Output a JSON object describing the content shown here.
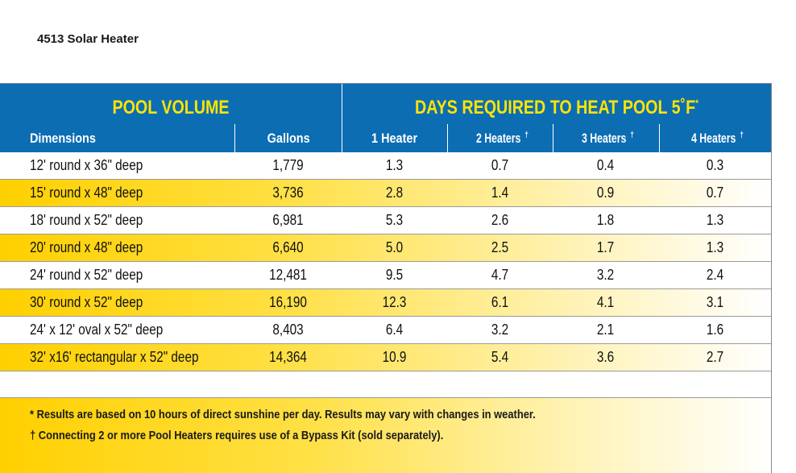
{
  "title": "4513 Solar Heater",
  "group_headers": {
    "pool_volume": "POOL VOLUME",
    "days_required": "DAYS REQUIRED TO HEAT POOL 5˚F",
    "days_required_mark": "*"
  },
  "columns": [
    "Dimensions",
    "Gallons",
    "1 Heater",
    "2 Heaters",
    "3 Heaters",
    "4 Heaters"
  ],
  "column_marks": [
    "",
    "",
    "",
    "†",
    "†",
    "†"
  ],
  "rows": [
    [
      "12' round x 36\" deep",
      "1,779",
      "1.3",
      "0.7",
      "0.4",
      "0.3"
    ],
    [
      "15' round x 48\" deep",
      "3,736",
      "2.8",
      "1.4",
      "0.9",
      "0.7"
    ],
    [
      "18' round x 52\" deep",
      "6,981",
      "5.3",
      "2.6",
      "1.8",
      "1.3"
    ],
    [
      "20' round x 48\" deep",
      "6,640",
      "5.0",
      "2.5",
      "1.7",
      "1.3"
    ],
    [
      "24' round x 52\" deep",
      "12,481",
      "9.5",
      "4.7",
      "3.2",
      "2.4"
    ],
    [
      "30' round x 52\" deep",
      "16,190",
      "12.3",
      "6.1",
      "4.1",
      "3.1"
    ],
    [
      "24' x 12' oval x 52\" deep",
      "8,403",
      "6.4",
      "3.2",
      "2.1",
      "1.6"
    ],
    [
      "32' x16' rectangular x 52\" deep",
      "14,364",
      "10.9",
      "5.4",
      "3.6",
      "2.7"
    ]
  ],
  "footnotes": [
    "* Results are based on 10 hours of direct sunshine per day. Results may vary with changes in weather.",
    "† Connecting 2 or more Pool Heaters requires use of a Bypass Kit (sold separately)."
  ],
  "colors": {
    "header_blue": "#0c6db3",
    "header_yellow_text": "#ffe400",
    "row_highlight": "#ffd000"
  }
}
